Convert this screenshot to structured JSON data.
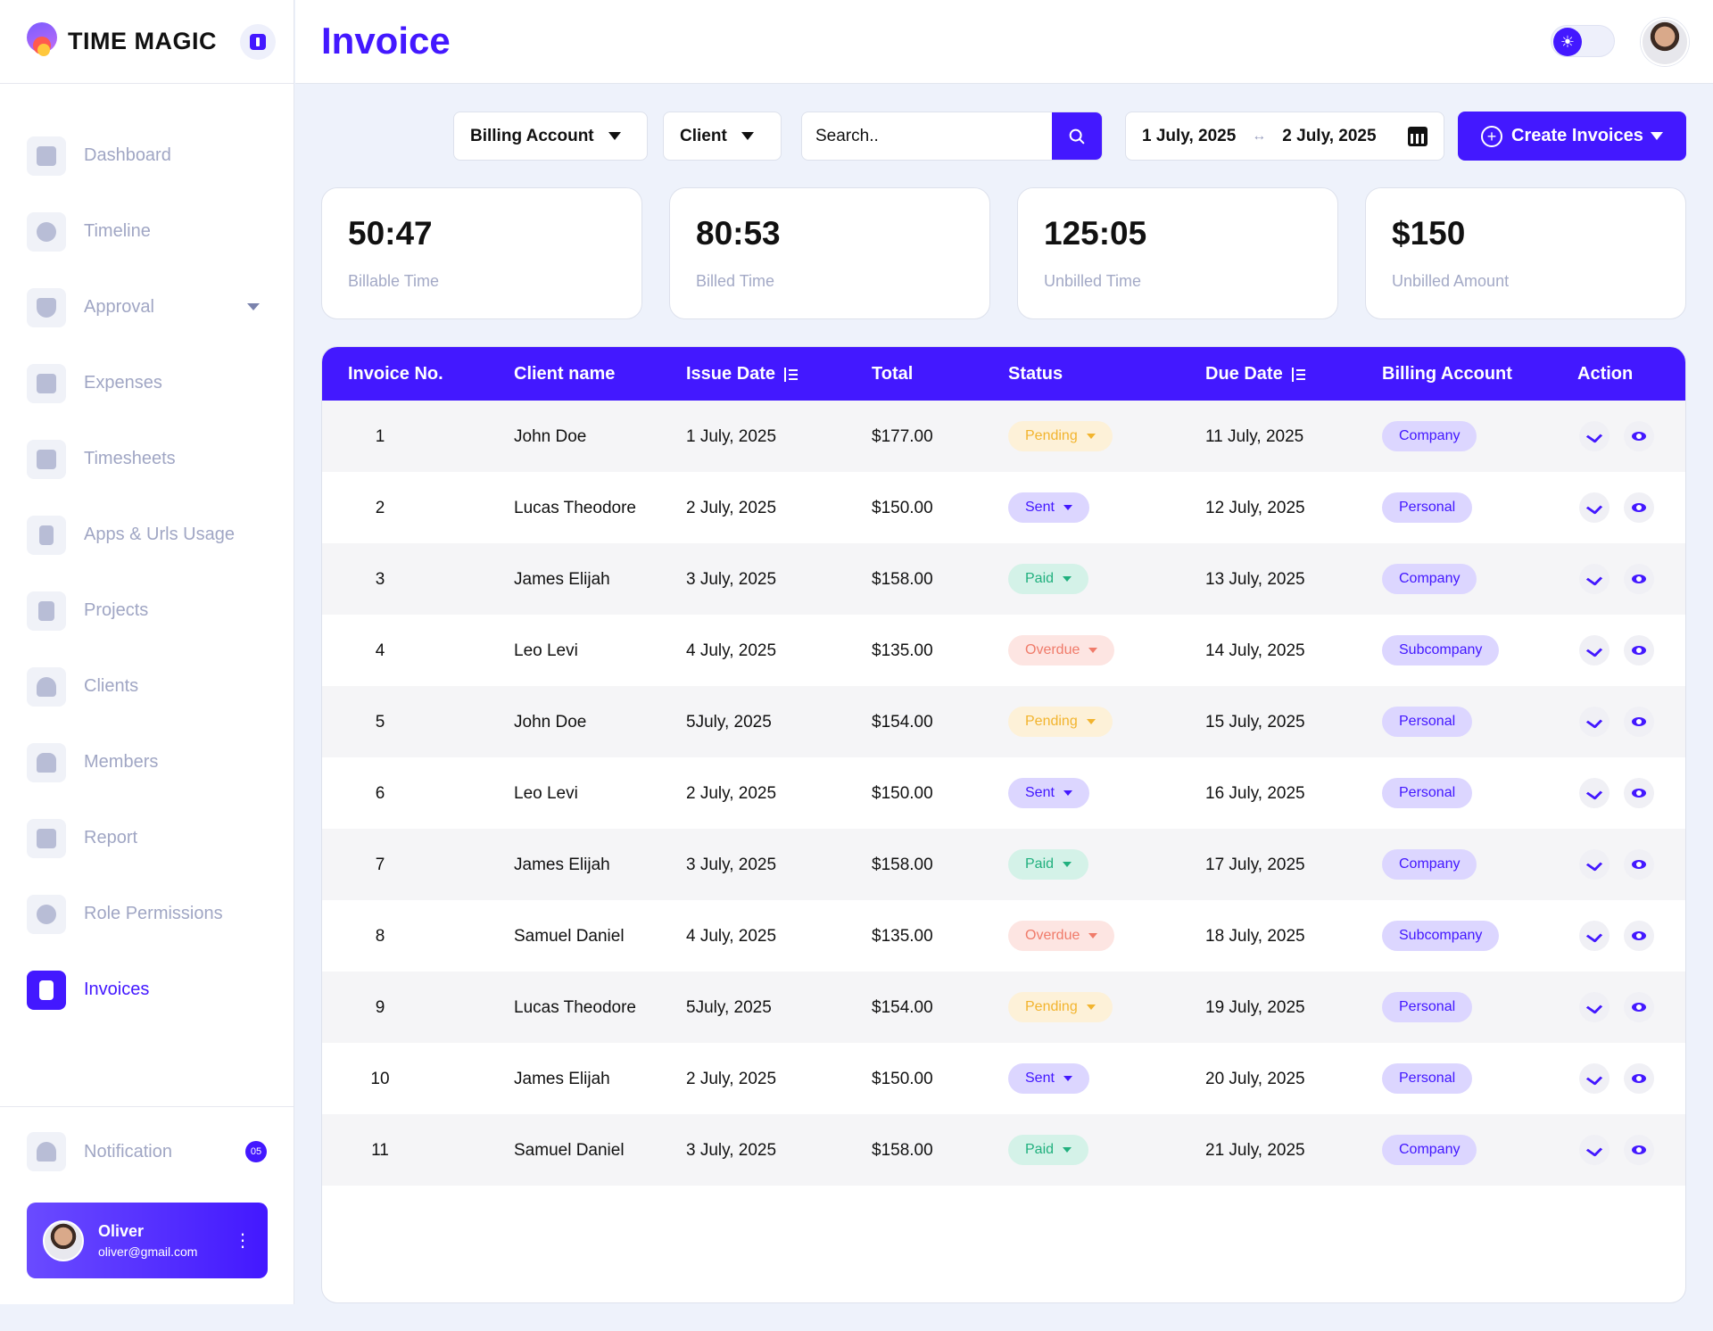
{
  "brand": {
    "name": "TIME MAGIC"
  },
  "header": {
    "title": "Invoice"
  },
  "sidebar": {
    "items": [
      {
        "label": "Dashboard",
        "icon": "dashboard-icon"
      },
      {
        "label": "Timeline",
        "icon": "timeline-icon"
      },
      {
        "label": "Approval",
        "icon": "shield-icon"
      },
      {
        "label": "Expenses",
        "icon": "wallet-icon"
      },
      {
        "label": "Timesheets",
        "icon": "calendar-clock-icon"
      },
      {
        "label": "Apps & Urls Usage",
        "icon": "app-usage-icon"
      },
      {
        "label": "Projects",
        "icon": "project-icon"
      },
      {
        "label": "Clients",
        "icon": "user-icon"
      },
      {
        "label": "Members",
        "icon": "group-icon"
      },
      {
        "label": "Report",
        "icon": "report-icon"
      },
      {
        "label": "Role Permissions",
        "icon": "gear-icon"
      },
      {
        "label": "Invoices",
        "icon": "invoice-icon"
      }
    ],
    "notification": {
      "label": "Notification",
      "count": "05"
    },
    "user": {
      "name": "Oliver",
      "email": "oliver@gmail.com"
    }
  },
  "toolbar": {
    "billing_account": "Billing Account",
    "client": "Client",
    "search_placeholder": "Search..",
    "date_from": "1 July, 2025",
    "date_to": "2 July, 2025",
    "create": "Create Invoices"
  },
  "stats": [
    {
      "value": "50:47",
      "label": "Billable Time"
    },
    {
      "value": "80:53",
      "label": "Billed Time"
    },
    {
      "value": "125:05",
      "label": "Unbilled Time"
    },
    {
      "value": "$150",
      "label": "Unbilled Amount"
    }
  ],
  "table": {
    "headers": [
      "Invoice No.",
      "Client name",
      "Issue Date",
      "Total",
      "Status",
      "Due Date",
      "Billing Account",
      "Action"
    ],
    "rows": [
      {
        "no": "1",
        "client": "John Doe",
        "issue": "1 July, 2025",
        "total": "$177.00",
        "status": "Pending",
        "due": "11 July, 2025",
        "account": "Company"
      },
      {
        "no": "2",
        "client": "Lucas Theodore",
        "issue": "2 July, 2025",
        "total": "$150.00",
        "status": "Sent",
        "due": "12 July, 2025",
        "account": "Personal"
      },
      {
        "no": "3",
        "client": "James Elijah",
        "issue": "3 July, 2025",
        "total": "$158.00",
        "status": "Paid",
        "due": "13 July, 2025",
        "account": "Company"
      },
      {
        "no": "4",
        "client": "Leo Levi",
        "issue": "4 July, 2025",
        "total": "$135.00",
        "status": "Overdue",
        "due": "14 July, 2025",
        "account": "Subcompany"
      },
      {
        "no": "5",
        "client": "John Doe",
        "issue": "5July, 2025",
        "total": "$154.00",
        "status": "Pending",
        "due": "15  July, 2025",
        "account": "Personal"
      },
      {
        "no": "6",
        "client": "Leo Levi",
        "issue": "2 July, 2025",
        "total": "$150.00",
        "status": "Sent",
        "due": "16 July, 2025",
        "account": "Personal"
      },
      {
        "no": "7",
        "client": "James Elijah",
        "issue": "3 July, 2025",
        "total": "$158.00",
        "status": "Paid",
        "due": "17 July, 2025",
        "account": "Company"
      },
      {
        "no": "8",
        "client": "Samuel Daniel",
        "issue": "4 July, 2025",
        "total": "$135.00",
        "status": "Overdue",
        "due": "18 July, 2025",
        "account": "Subcompany"
      },
      {
        "no": "9",
        "client": "Lucas Theodore",
        "issue": "5July, 2025",
        "total": "$154.00",
        "status": "Pending",
        "due": "19  July, 2025",
        "account": "Personal"
      },
      {
        "no": "10",
        "client": "James Elijah",
        "issue": "2 July, 2025",
        "total": "$150.00",
        "status": "Sent",
        "due": "20 July, 2025",
        "account": "Personal"
      },
      {
        "no": "11",
        "client": "Samuel Daniel",
        "issue": "3 July, 2025",
        "total": "$158.00",
        "status": "Paid",
        "due": "21 July, 2025",
        "account": "Company"
      }
    ]
  },
  "colors": {
    "accent": "#4318ff",
    "pending": "#f2b42e",
    "sent": "#4318ff",
    "paid": "#21b07e",
    "overdue": "#f07b6a"
  }
}
